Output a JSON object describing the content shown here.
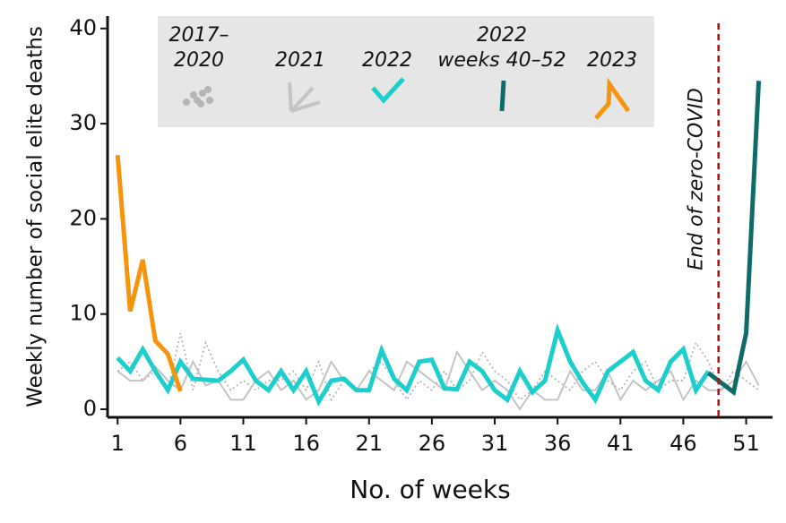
{
  "chart_data": {
    "type": "line",
    "xlabel": "No. of weeks",
    "ylabel": "Weekly number of social elite deaths",
    "xlim": [
      0.2,
      53.1
    ],
    "ylim": [
      -0.85,
      41.3
    ],
    "xticks": [
      1,
      6,
      11,
      16,
      21,
      26,
      31,
      36,
      41,
      46,
      51
    ],
    "yticks": [
      0,
      10,
      20,
      30,
      40
    ],
    "series": [
      {
        "name": [
          "2017–",
          "2020"
        ],
        "color": "#b5b5b5",
        "linestyle": "dotted",
        "linewidth": 1.8,
        "x": [
          1,
          2,
          3,
          4,
          5,
          6,
          7,
          8,
          9,
          10,
          11,
          12,
          13,
          14,
          15,
          16,
          17,
          18,
          19,
          20,
          21,
          22,
          23,
          24,
          25,
          26,
          27,
          28,
          29,
          30,
          31,
          32,
          33,
          34,
          35,
          36,
          37,
          38,
          39,
          40,
          41,
          42,
          43,
          44,
          45,
          46,
          47,
          48,
          49,
          50,
          51,
          52
        ],
        "values": [
          4,
          5,
          3,
          4,
          2,
          8,
          2,
          7,
          4,
          2,
          3,
          2,
          3,
          3,
          4,
          2,
          5,
          1,
          3,
          2,
          4,
          5,
          3,
          1,
          3,
          2,
          4,
          2,
          3,
          6,
          4,
          3,
          1,
          2,
          4,
          3,
          2,
          4,
          5,
          3,
          2,
          4,
          5,
          2,
          3,
          3,
          7,
          5,
          2,
          4,
          3,
          2
        ]
      },
      {
        "name": [
          "2021"
        ],
        "color": "#c4c4c4",
        "linestyle": "solid",
        "linewidth": 2,
        "x": [
          1,
          2,
          3,
          4,
          5,
          6,
          7,
          8,
          9,
          10,
          11,
          12,
          13,
          14,
          15,
          16,
          17,
          18,
          19,
          20,
          21,
          22,
          23,
          24,
          25,
          26,
          27,
          28,
          29,
          30,
          31,
          32,
          33,
          34,
          35,
          36,
          37,
          38,
          39,
          40,
          41,
          42,
          43,
          44,
          45,
          46,
          47,
          48,
          49,
          50,
          51,
          52
        ],
        "values": [
          4,
          3,
          3,
          4.5,
          3,
          2,
          5,
          2.5,
          3,
          1,
          1,
          3,
          4,
          2,
          3,
          1,
          2,
          5,
          3,
          2,
          4,
          3,
          2,
          5,
          4,
          3,
          2,
          6,
          4,
          2,
          3,
          2,
          0,
          2,
          1,
          1,
          4,
          2,
          2,
          4,
          1,
          3,
          2,
          3,
          4,
          1,
          3,
          2,
          2,
          3,
          5,
          2.5
        ]
      },
      {
        "name": [
          "2022"
        ],
        "color": "#1ccfcc",
        "linestyle": "solid",
        "linewidth": 5,
        "x": [
          1,
          2,
          3,
          4,
          5,
          6,
          7,
          8,
          9,
          10,
          11,
          12,
          13,
          14,
          15,
          16,
          17,
          18,
          19,
          20,
          21,
          22,
          23,
          24,
          25,
          26,
          27,
          28,
          29,
          30,
          31,
          32,
          33,
          34,
          35,
          36,
          37,
          38,
          39,
          40,
          41,
          42,
          43,
          44,
          45,
          46,
          47,
          48
        ],
        "values": [
          5.4,
          4,
          6.3,
          4,
          2,
          5,
          3.2,
          3.1,
          3,
          4,
          5.2,
          3,
          2,
          4,
          2,
          4,
          0.8,
          3,
          3.2,
          2,
          2,
          6.2,
          3.2,
          2,
          5,
          5.2,
          2.2,
          2.1,
          5,
          4,
          2,
          1,
          4,
          1.8,
          3,
          8.3,
          5,
          2.8,
          1,
          4,
          5,
          6,
          3,
          2,
          5,
          6.3,
          2,
          4
        ]
      },
      {
        "name": [
          "2022",
          "weeks 40–52"
        ],
        "color": "#0e6b68",
        "linestyle": "solid",
        "linewidth": 5,
        "x": [
          48,
          49,
          50,
          51,
          52
        ],
        "values": [
          3.8,
          2.8,
          1.8,
          8,
          34.5
        ]
      },
      {
        "name": [
          "2023"
        ],
        "color": "#f7940d",
        "linestyle": "solid",
        "linewidth": 5,
        "x": [
          1,
          2,
          3,
          4,
          5,
          6
        ],
        "values": [
          26.7,
          10.3,
          15.7,
          7.2,
          5.8,
          1.9
        ]
      }
    ],
    "annotations": [
      {
        "text": "End of zero-COVID",
        "x": 48.8,
        "color": "#a01515"
      }
    ]
  }
}
